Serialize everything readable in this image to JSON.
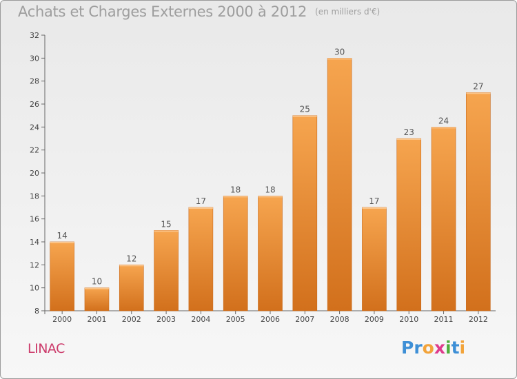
{
  "header": {
    "title": "Achats et Charges Externes 2000 à 2012",
    "subtitle": "(en milliers d'€)"
  },
  "commune": "LINAC",
  "logo": {
    "text": "Proxiti",
    "letters": [
      "P",
      "r",
      "o",
      "x",
      "i",
      "t",
      "i"
    ],
    "colors": [
      "#3d8fd6",
      "#3d8fd6",
      "#f2a33a",
      "#de3c8c",
      "#4fae3c",
      "#3d8fd6",
      "#f2a33a"
    ]
  },
  "colors": {
    "bar_top": "#f6a54f",
    "bar_bottom": "#d2701c",
    "title": "#9e9e9e",
    "commune": "#cc3b6b"
  },
  "chart_data": {
    "type": "bar",
    "categories": [
      "2000",
      "2001",
      "2002",
      "2003",
      "2004",
      "2005",
      "2006",
      "2007",
      "2008",
      "2009",
      "2010",
      "2011",
      "2012"
    ],
    "values": [
      14,
      10,
      12,
      15,
      17,
      18,
      18,
      25,
      30,
      17,
      23,
      24,
      27
    ],
    "title": "Achats et Charges Externes 2000 à 2012",
    "subtitle": "(en milliers d'€)",
    "xlabel": "",
    "ylabel": "",
    "ylim": [
      8,
      32
    ],
    "yticks": [
      8,
      10,
      12,
      14,
      16,
      18,
      20,
      22,
      24,
      26,
      28,
      30,
      32
    ],
    "grid": false,
    "data_labels": true
  }
}
